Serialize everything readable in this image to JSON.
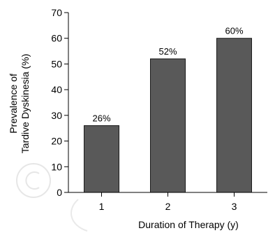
{
  "chart_data": {
    "type": "bar",
    "title": "",
    "xlabel": "Duration of Therapy (y)",
    "ylabel_lines": [
      "Prevalence of",
      "Tardive Dyskinesia (%)"
    ],
    "categories": [
      "1",
      "2",
      "3"
    ],
    "values": [
      26,
      52,
      60
    ],
    "data_labels": [
      "26%",
      "52%",
      "60%"
    ],
    "ylim": [
      0,
      70
    ],
    "yticks": [
      "0",
      "10",
      "20",
      "30",
      "40",
      "50",
      "60",
      "70"
    ],
    "grid": false,
    "legend": "none",
    "colors": {
      "bar_fill": "#595959",
      "bar_stroke": "#1a1a1a",
      "axis": "#000000"
    }
  },
  "watermark": "©"
}
